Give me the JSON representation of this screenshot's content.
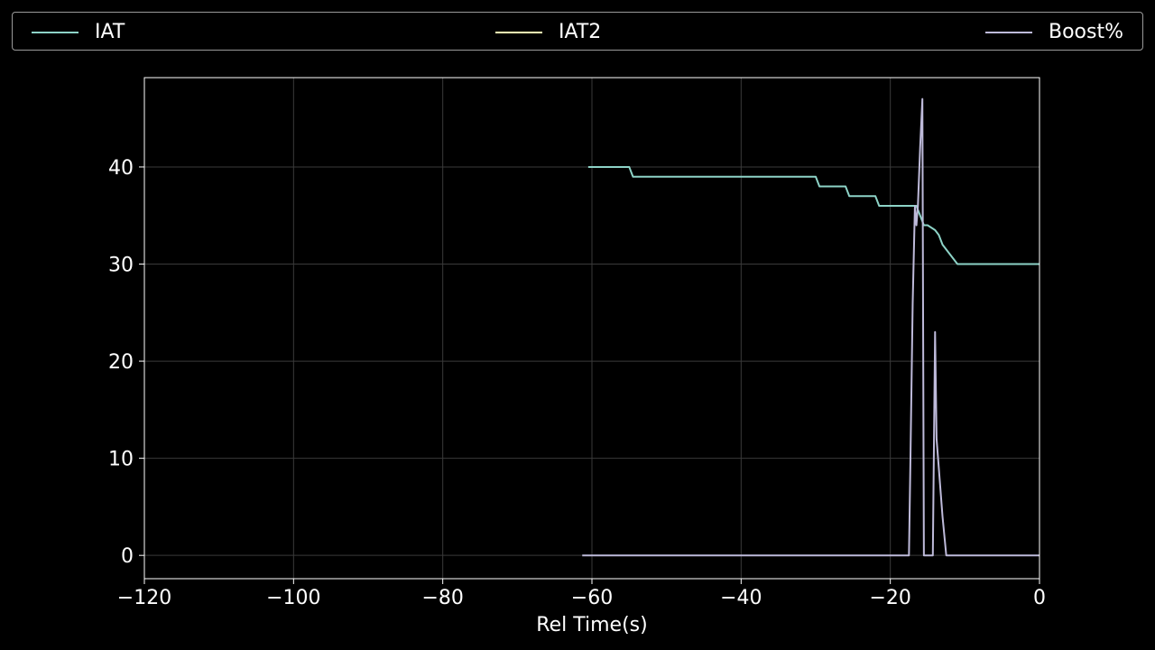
{
  "chart_data": {
    "type": "line",
    "title": "",
    "xlabel": "Rel Time(s)",
    "ylabel": "",
    "xlim": [
      -120,
      0
    ],
    "ylim": [
      -2.4,
      49.2
    ],
    "xticks": [
      -120,
      -100,
      -80,
      -60,
      -40,
      -20,
      0
    ],
    "xtick_labels": [
      "−120",
      "−100",
      "−80",
      "−60",
      "−40",
      "−20",
      "0"
    ],
    "yticks": [
      0,
      10,
      20,
      30,
      40
    ],
    "ytick_labels": [
      "0",
      "10",
      "20",
      "30",
      "40"
    ],
    "grid": true,
    "legend": "top, spanning full width",
    "background": "#000000",
    "grid_color": "#3a3a3a",
    "series": [
      {
        "name": "IAT",
        "color": "#8dd3c7",
        "x": [
          -60.5,
          -55,
          -54.5,
          -30,
          -29.5,
          -26,
          -25.5,
          -22,
          -21.5,
          -16.5,
          -16,
          -15.5,
          -15,
          -14,
          -13.5,
          -13,
          -12,
          -11,
          0
        ],
        "y": [
          40,
          40,
          39,
          39,
          38,
          38,
          37,
          37,
          36,
          36,
          35,
          34,
          34,
          33.5,
          33,
          32,
          31,
          30,
          30
        ]
      },
      {
        "name": "IAT2",
        "color": "#ffffb3",
        "x": [],
        "y": []
      },
      {
        "name": "Boost%",
        "color": "#bebada",
        "x": [
          -61.3,
          -17.5,
          -17.3,
          -17,
          -16.7,
          -16.5,
          -16.3,
          -16,
          -15.7,
          -15.5,
          -15.3,
          -14.3,
          -14,
          -13.8,
          -13.5,
          -13,
          -12.5,
          -12.3,
          -11.5,
          0
        ],
        "y": [
          0,
          0,
          10,
          26,
          36,
          34,
          36,
          42,
          47,
          0,
          0,
          0,
          23,
          12,
          9,
          4,
          0,
          0,
          0,
          0
        ]
      }
    ]
  }
}
